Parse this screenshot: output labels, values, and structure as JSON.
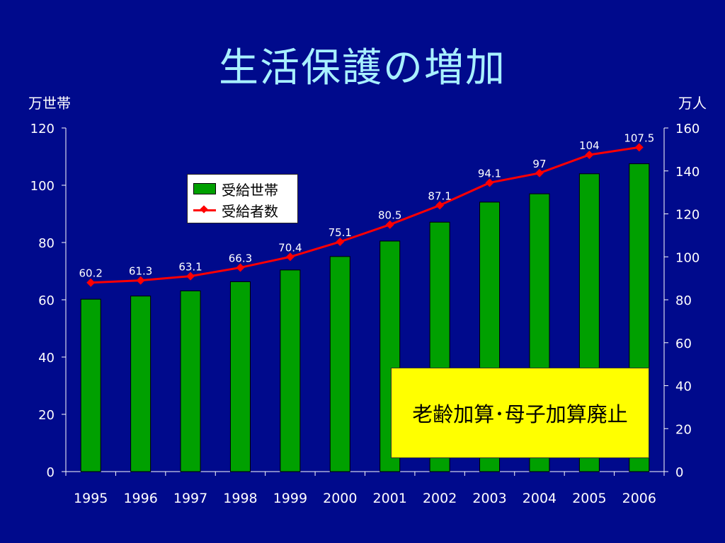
{
  "title": "生活保護の増加",
  "left_unit": "万世帯",
  "right_unit": "万人",
  "legend": {
    "bar_label": "受給世帯",
    "line_label": "受給者数"
  },
  "callout": "老齢加算･母子加算廃止",
  "colors": {
    "background": "#000a8c",
    "bar": "#00a000",
    "line": "#ff0000",
    "title": "#a8f0ff",
    "callout": "#ffff00"
  },
  "chart_data": {
    "type": "bar",
    "title": "生活保護の増加",
    "categories": [
      "1995",
      "1996",
      "1997",
      "1998",
      "1999",
      "2000",
      "2001",
      "2002",
      "2003",
      "2004",
      "2005",
      "2006"
    ],
    "series": [
      {
        "name": "受給世帯",
        "type": "bar",
        "axis": "left",
        "values": [
          60.2,
          61.3,
          63.1,
          66.3,
          70.4,
          75.1,
          80.5,
          87.1,
          94.1,
          97,
          104,
          107.5
        ],
        "labels": [
          "60.2",
          "61.3",
          "63.1",
          "66.3",
          "70.4",
          "75.1",
          "80.5",
          "87.1",
          "94.1",
          "97",
          "104",
          "107.5"
        ]
      },
      {
        "name": "受給者数",
        "type": "line",
        "axis": "right",
        "values": [
          88,
          89,
          91,
          95,
          100,
          107,
          115,
          124,
          134.5,
          139,
          147.5,
          151
        ]
      }
    ],
    "y_left": {
      "label": "万世帯",
      "range": [
        0,
        120
      ],
      "ticks": [
        0,
        20,
        40,
        60,
        80,
        100,
        120
      ]
    },
    "y_right": {
      "label": "万人",
      "range": [
        0,
        160
      ],
      "ticks": [
        0,
        20,
        40,
        60,
        80,
        100,
        120,
        140,
        160
      ]
    },
    "legend_position": "upper-left",
    "grid": false
  }
}
